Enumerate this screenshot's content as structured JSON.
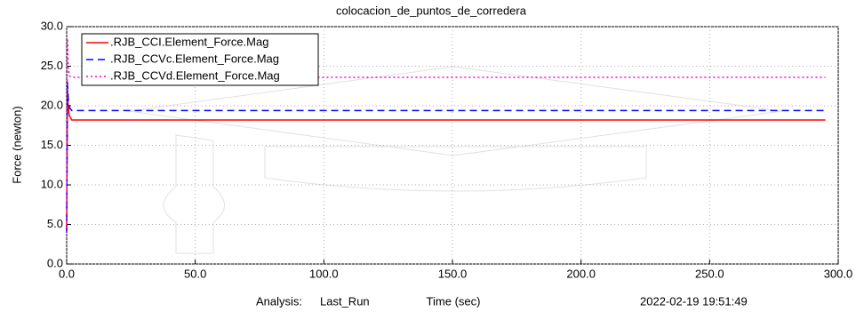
{
  "chart_data": {
    "type": "line",
    "title": "colocacion_de_puntos_de_corredera",
    "x_label": "Time (sec)",
    "y_label": "Force (newton)",
    "analysis_label": "Analysis:",
    "analysis_name": "Last_Run",
    "timestamp": "2022-02-19 19:51:49",
    "x": [
      0,
      0.3,
      0.6,
      1,
      2,
      3,
      295
    ],
    "series": [
      {
        "name": ".RJB_CCI.Element_Force.Mag",
        "color": "#ff0000",
        "style": "solid",
        "values": [
          4,
          22,
          20,
          18.8,
          18.2,
          18.2,
          18.2
        ]
      },
      {
        "name": ".RJB_CCVc.Element_Force.Mag",
        "color": "#0000ff",
        "style": "dashed",
        "values": [
          4,
          23,
          21,
          19.8,
          19.4,
          19.4,
          19.4
        ]
      },
      {
        "name": ".RJB_CCVd.Element_Force.Mag",
        "color": "#ff00cc",
        "style": "dotted",
        "values": [
          4,
          28.5,
          25,
          23.8,
          23.6,
          23.6,
          23.6
        ]
      }
    ],
    "xlim": [
      0,
      300
    ],
    "xticks": [
      {
        "value": 0,
        "label": "0.0"
      },
      {
        "value": 50,
        "label": "50.0"
      },
      {
        "value": 100,
        "label": "100.0"
      },
      {
        "value": 150,
        "label": "150.0"
      },
      {
        "value": 200,
        "label": "200.0"
      },
      {
        "value": 250,
        "label": "250.0"
      },
      {
        "value": 300,
        "label": "300.0"
      }
    ],
    "ylim": [
      0,
      30
    ],
    "yticks": [
      {
        "value": 0,
        "label": "0.0"
      },
      {
        "value": 5,
        "label": "5.0"
      },
      {
        "value": 10,
        "label": "10.0"
      },
      {
        "value": 15,
        "label": "15.0"
      },
      {
        "value": 20,
        "label": "20.0"
      },
      {
        "value": 25,
        "label": "25.0"
      },
      {
        "value": 30,
        "label": "30.0"
      }
    ],
    "grid": true,
    "legend": "upper left"
  }
}
